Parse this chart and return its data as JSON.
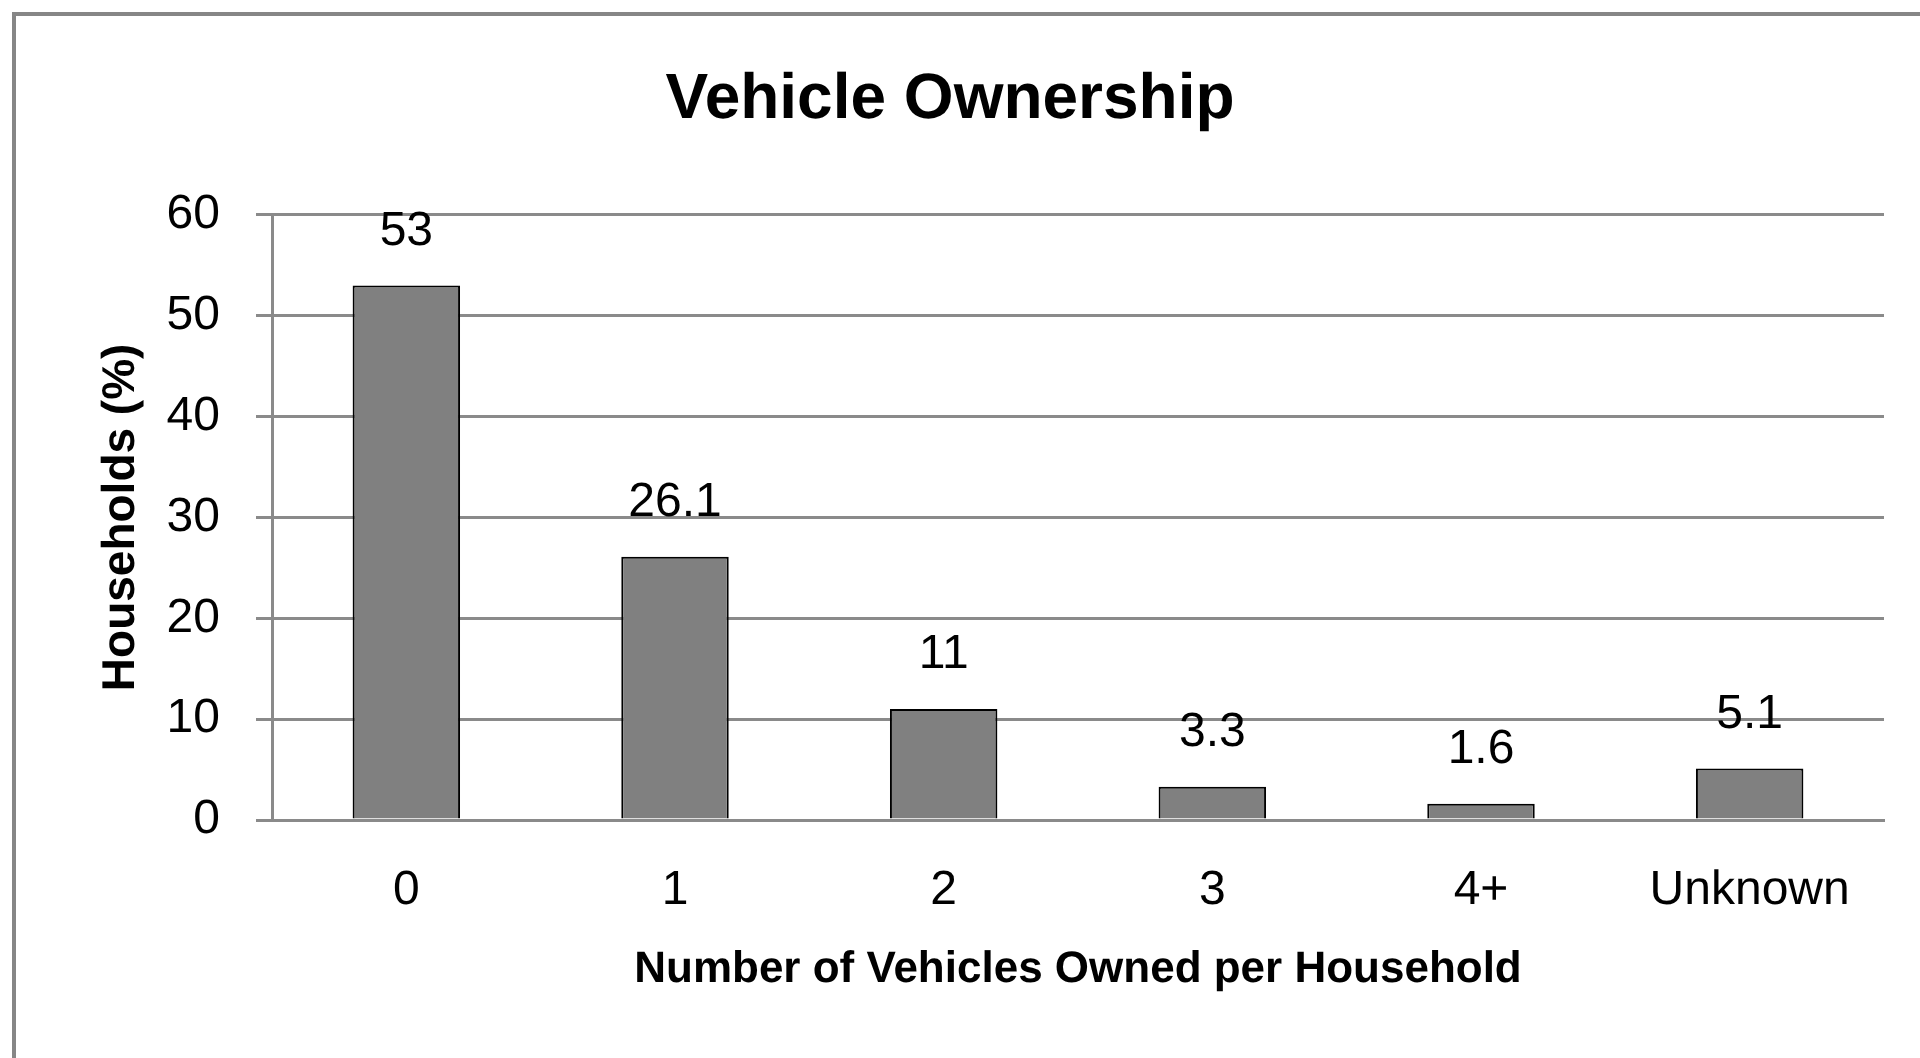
{
  "chart_data": {
    "type": "bar",
    "title": "Vehicle Ownership",
    "xlabel": "Number of Vehicles Owned per Household",
    "ylabel": "Households (%)",
    "categories": [
      "0",
      "1",
      "2",
      "3",
      "4+",
      "Unknown"
    ],
    "values": [
      53,
      26.1,
      11,
      3.3,
      1.6,
      5.1
    ],
    "color": "#808080",
    "ylim": [
      0,
      60
    ],
    "yticks": [
      0,
      10,
      20,
      30,
      40,
      50,
      60
    ],
    "grid": "y",
    "data_labels": true
  }
}
